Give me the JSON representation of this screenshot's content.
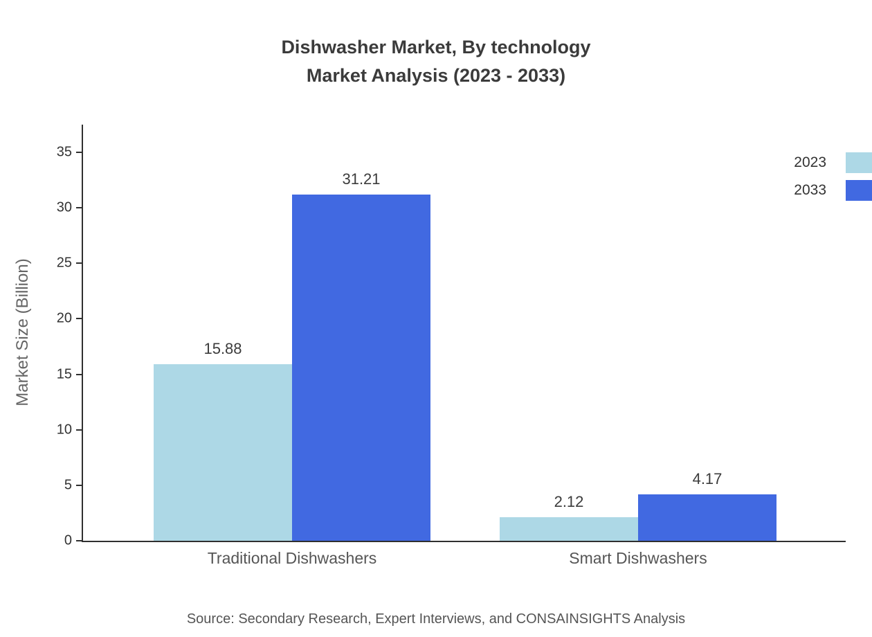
{
  "chart_data": {
    "type": "bar",
    "title": "Dishwasher Market, By technology",
    "subtitle": "Market Analysis (2023 - 2033)",
    "categories": [
      "Traditional Dishwashers",
      "Smart Dishwashers"
    ],
    "series": [
      {
        "name": "2023",
        "color": "#ADD8E6",
        "values": [
          15.88,
          2.12
        ]
      },
      {
        "name": "2033",
        "color": "#4169E1",
        "values": [
          31.21,
          4.17
        ]
      }
    ],
    "xlabel": "",
    "ylabel": "Market Size (Billion)",
    "ylim": [
      0,
      35
    ],
    "yticks": [
      0,
      5,
      10,
      15,
      20,
      25,
      30,
      35
    ],
    "grid": false,
    "legend_position": "top-right",
    "value_labels": true,
    "source": "Source: Secondary Research, Expert Interviews, and CONSAINSIGHTS Analysis",
    "colors": {
      "axis": "#2f2f2f",
      "title_text": "#3b3b3b",
      "label_text": "#555555",
      "background": "#ffffff"
    }
  }
}
